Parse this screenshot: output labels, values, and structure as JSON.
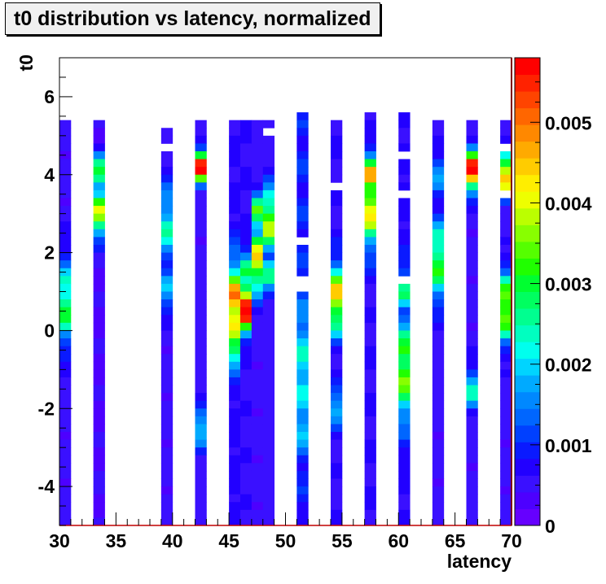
{
  "chart_data": {
    "type": "heatmap",
    "title": "t0 distribution vs latency, normalized",
    "xlabel": "latency",
    "ylabel": "t0",
    "xlim": [
      30,
      70
    ],
    "ylim": [
      -5,
      7
    ],
    "x_ticks": [
      "30",
      "35",
      "40",
      "45",
      "50",
      "55",
      "60",
      "65",
      "70"
    ],
    "x_tick_values": [
      30,
      35,
      40,
      45,
      50,
      55,
      60,
      65,
      70
    ],
    "y_ticks": [
      "-4",
      "-2",
      "0",
      "2",
      "4",
      "6"
    ],
    "y_tick_values": [
      -4,
      -2,
      0,
      2,
      4,
      6
    ],
    "z_range": [
      0,
      0.0058
    ],
    "z_ticks": [
      "0",
      "0.001",
      "0.002",
      "0.003",
      "0.004",
      "0.005"
    ],
    "z_tick_values": [
      0,
      0.001,
      0.002,
      0.003,
      0.004,
      0.005
    ],
    "y_bins": {
      "start": 5.4,
      "end": -5.0,
      "width": 0.2
    },
    "columns": [
      {
        "latency": 30.5,
        "peak_t0": 0.7,
        "peak_value": 0.0028,
        "base": 0.0005,
        "width": 1.0,
        "second_peak_t0": null,
        "second_peak_value": 0
      },
      {
        "latency": 33.5,
        "peak_t0": 3.0,
        "peak_value": 0.0036,
        "base": 0.0004,
        "width": 0.6,
        "second_peak_t0": 4.0,
        "second_peak_value": 0.003
      },
      {
        "latency": 39.5,
        "peak_t0": 2.7,
        "peak_value": 0.0022,
        "base": 0.0005,
        "width": 1.0,
        "second_peak_t0": 1.0,
        "second_peak_value": 0.0018,
        "top_t0": 5.2
      },
      {
        "latency": 42.5,
        "peak_t0": 4.2,
        "peak_value": 0.0052,
        "base": 0.0005,
        "width": 0.4,
        "second_peak_t0": -2.5,
        "second_peak_value": 0.002
      },
      {
        "latency": 45.5,
        "peak_t0": 0.6,
        "peak_value": 0.0048,
        "base": 0.0007,
        "width": 1.0,
        "second_peak_t0": -0.5,
        "second_peak_value": 0.003
      },
      {
        "latency": 46.5,
        "peak_t0": 0.6,
        "peak_value": 0.0058,
        "base": 0.0006,
        "width": 0.6,
        "second_peak_t0": 1.5,
        "second_peak_value": 0.0025
      },
      {
        "latency": 47.5,
        "peak_t0": 1.8,
        "peak_value": 0.004,
        "base": 0.0005,
        "width": 0.8,
        "second_peak_t0": 3.0,
        "second_peak_value": 0.003
      },
      {
        "latency": 48.5,
        "peak_t0": 2.8,
        "peak_value": 0.0036,
        "base": 0.0005,
        "width": 0.8,
        "second_peak_t0": 1.5,
        "second_peak_value": 0.0024
      },
      {
        "latency": 51.5,
        "peak_t0": -1.0,
        "peak_value": 0.0021,
        "base": 0.0009,
        "width": 1.6,
        "second_peak_t0": -2.5,
        "second_peak_value": 0.002,
        "top_t0": 5.6
      },
      {
        "latency": 54.5,
        "peak_t0": 0.8,
        "peak_value": 0.0042,
        "base": 0.0006,
        "width": 0.8,
        "second_peak_t0": -2.0,
        "second_peak_value": 0.0018
      },
      {
        "latency": 57.5,
        "peak_t0": 3.2,
        "peak_value": 0.004,
        "base": 0.0006,
        "width": 1.0,
        "second_peak_t0": 4.0,
        "second_peak_value": 0.0042,
        "top_t0": 5.6
      },
      {
        "latency": 60.5,
        "peak_t0": -1.0,
        "peak_value": 0.0034,
        "base": 0.0007,
        "width": 1.2,
        "second_peak_t0": 1.0,
        "second_peak_value": 0.0024,
        "top_t0": 5.6
      },
      {
        "latency": 63.5,
        "peak_t0": 1.8,
        "peak_value": 0.003,
        "base": 0.0005,
        "width": 1.0,
        "second_peak_t0": 4.0,
        "second_peak_value": 0.0016
      },
      {
        "latency": 66.5,
        "peak_t0": 4.1,
        "peak_value": 0.0054,
        "base": 0.0005,
        "width": 0.5,
        "second_peak_t0": -1.5,
        "second_peak_value": 0.0022
      },
      {
        "latency": 69.5,
        "peak_t0": 0.6,
        "peak_value": 0.0038,
        "base": 0.0005,
        "width": 0.8,
        "second_peak_t0": 4.0,
        "second_peak_value": 0.0048
      }
    ],
    "gaps": [
      {
        "latency": 39.5,
        "t0": [
          4.6,
          4.8
        ]
      },
      {
        "latency": 48.5,
        "t0": [
          5.0,
          5.2
        ]
      },
      {
        "latency": 51.5,
        "t0": [
          1.0,
          1.4
        ]
      },
      {
        "latency": 51.5,
        "t0": [
          2.2,
          2.4
        ]
      },
      {
        "latency": 54.5,
        "t0": [
          3.6,
          3.8
        ]
      },
      {
        "latency": 60.5,
        "t0": [
          1.2,
          1.4
        ]
      },
      {
        "latency": 60.5,
        "t0": [
          3.4,
          3.6
        ]
      },
      {
        "latency": 60.5,
        "t0": [
          4.4,
          4.6
        ]
      },
      {
        "latency": 69.5,
        "t0": [
          3.4,
          3.6
        ]
      },
      {
        "latency": 69.5,
        "t0": [
          4.6,
          4.8
        ]
      }
    ],
    "palette": [
      "#6600ff",
      "#4d00ff",
      "#3a10ff",
      "#2200ff",
      "#0a1aff",
      "#0040ff",
      "#0066ff",
      "#0088ff",
      "#00aaff",
      "#00d4ff",
      "#00ffee",
      "#00ffc0",
      "#00ff90",
      "#00ff60",
      "#00ff30",
      "#20ff00",
      "#55ff00",
      "#88ff00",
      "#bbff00",
      "#eeff00",
      "#ffee00",
      "#ffcc00",
      "#ffaa00",
      "#ff8800",
      "#ff6600",
      "#ff4400",
      "#ff2200",
      "#ff0000"
    ]
  }
}
